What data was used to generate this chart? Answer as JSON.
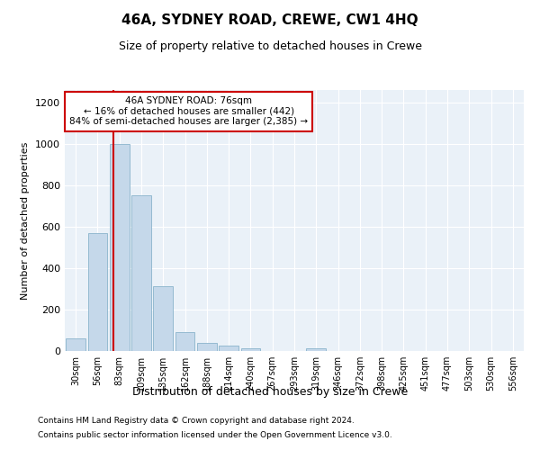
{
  "title": "46A, SYDNEY ROAD, CREWE, CW1 4HQ",
  "subtitle": "Size of property relative to detached houses in Crewe",
  "xlabel": "Distribution of detached houses by size in Crewe",
  "ylabel": "Number of detached properties",
  "bar_color": "#c5d8ea",
  "bar_edge_color": "#8ab4cc",
  "background_color": "#eaf1f8",
  "categories": [
    "30sqm",
    "56sqm",
    "83sqm",
    "109sqm",
    "135sqm",
    "162sqm",
    "188sqm",
    "214sqm",
    "240sqm",
    "267sqm",
    "293sqm",
    "319sqm",
    "346sqm",
    "372sqm",
    "398sqm",
    "425sqm",
    "451sqm",
    "477sqm",
    "503sqm",
    "530sqm",
    "556sqm"
  ],
  "values": [
    62,
    570,
    1000,
    750,
    315,
    90,
    38,
    25,
    15,
    0,
    0,
    15,
    0,
    0,
    0,
    0,
    0,
    0,
    0,
    0,
    0
  ],
  "ylim": [
    0,
    1260
  ],
  "yticks": [
    0,
    200,
    400,
    600,
    800,
    1000,
    1200
  ],
  "annotation_title": "46A SYDNEY ROAD: 76sqm",
  "annotation_line1": "← 16% of detached houses are smaller (442)",
  "annotation_line2": "84% of semi-detached houses are larger (2,385) →",
  "annotation_box_color": "#ffffff",
  "annotation_box_edge": "#cc0000",
  "vline_color": "#cc0000",
  "footer1": "Contains HM Land Registry data © Crown copyright and database right 2024.",
  "footer2": "Contains public sector information licensed under the Open Government Licence v3.0."
}
